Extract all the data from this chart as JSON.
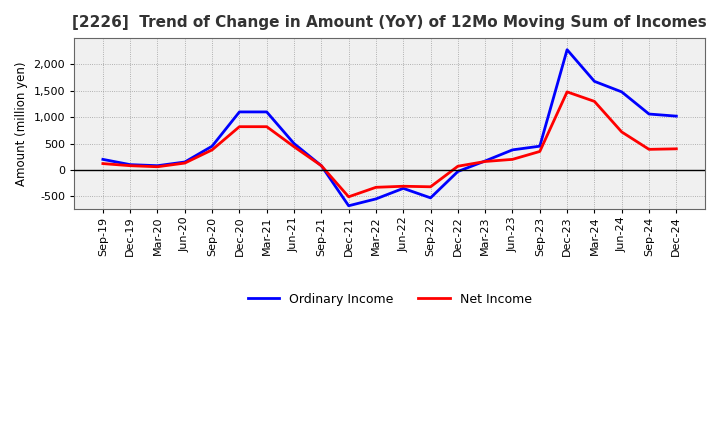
{
  "title": "[2226]  Trend of Change in Amount (YoY) of 12Mo Moving Sum of Incomes",
  "ylabel": "Amount (million yen)",
  "labels": [
    "Sep-19",
    "Dec-19",
    "Mar-20",
    "Jun-20",
    "Sep-20",
    "Dec-20",
    "Mar-21",
    "Jun-21",
    "Sep-21",
    "Dec-21",
    "Mar-22",
    "Jun-22",
    "Sep-22",
    "Dec-22",
    "Mar-23",
    "Jun-23",
    "Sep-23",
    "Dec-23",
    "Mar-24",
    "Jun-24",
    "Sep-24",
    "Dec-24"
  ],
  "ordinary_income": [
    200,
    100,
    80,
    150,
    450,
    1100,
    1100,
    500,
    80,
    -680,
    -550,
    -350,
    -530,
    -30,
    170,
    380,
    450,
    2280,
    1680,
    1480,
    1060,
    1020
  ],
  "net_income": [
    120,
    80,
    60,
    130,
    380,
    820,
    820,
    440,
    80,
    -510,
    -330,
    -310,
    -320,
    70,
    160,
    200,
    350,
    1480,
    1300,
    720,
    390,
    400
  ],
  "ordinary_color": "#0000ff",
  "net_color": "#ff0000",
  "background_color": "#ffffff",
  "plot_bg_color": "#f0f0f0",
  "grid_color": "#888888",
  "ylim": [
    -750,
    2500
  ],
  "yticks": [
    -500,
    0,
    500,
    1000,
    1500,
    2000
  ],
  "legend_ordinary": "Ordinary Income",
  "legend_net": "Net Income",
  "line_width": 2.0,
  "title_color": "#333333",
  "title_fontsize": 11,
  "axis_label_fontsize": 8.5,
  "tick_fontsize": 8
}
